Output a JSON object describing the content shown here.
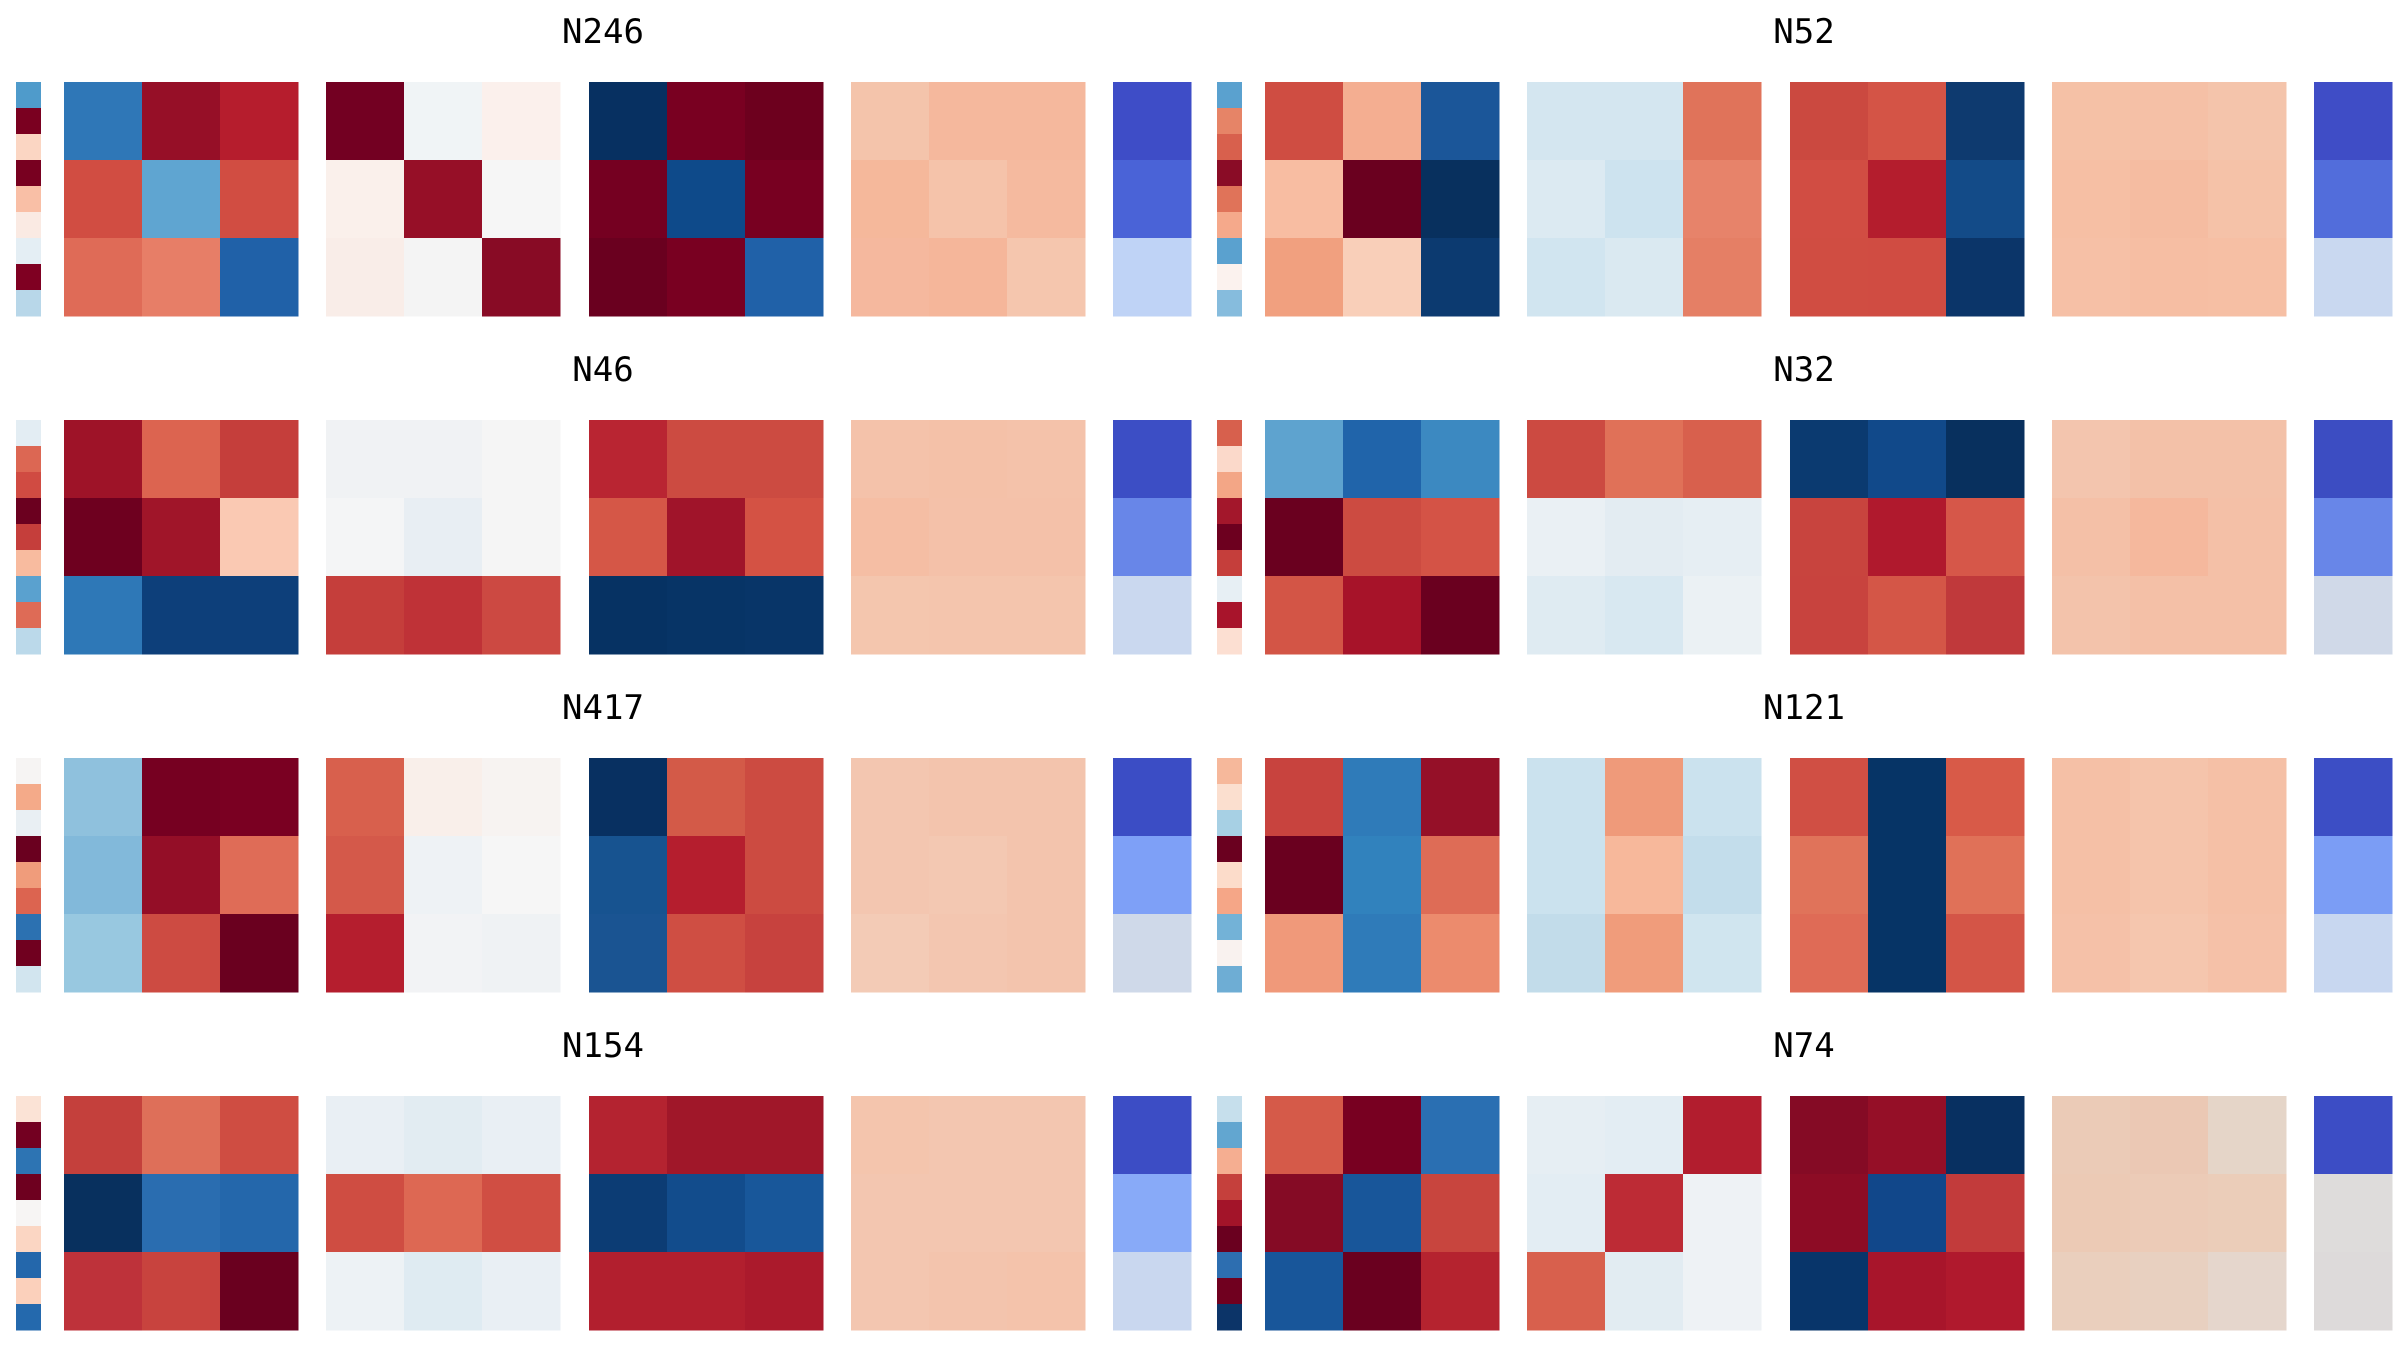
{
  "chart_data": {
    "type": "heatmap",
    "panels": [
      {
        "title": "N246",
        "strip": [
          "#4f9bcb",
          "#7a0020",
          "#fbd6c3",
          "#780020",
          "#f9bfa6",
          "#faeae3",
          "#e4eef4",
          "#7f0022",
          "#b8d7e9"
        ],
        "matrices": [
          [
            [
              "#2f77b7",
              "#960f27",
              "#b61d2d"
            ],
            [
              "#d14d42",
              "#5fa5d1",
              "#d14d42"
            ],
            [
              "#df6b57",
              "#e77e67",
              "#2061a8"
            ]
          ],
          [
            [
              "#730022",
              "#f0f4f6",
              "#fbf0ec"
            ],
            [
              "#faf0eb",
              "#960f27",
              "#f6f6f6"
            ],
            [
              "#f9ede8",
              "#f4f4f4",
              "#880b25"
            ]
          ],
          [
            [
              "#073061",
              "#790021",
              "#6d001e"
            ],
            [
              "#750021",
              "#0e4a8a",
              "#780021"
            ],
            [
              "#6a001f",
              "#790021",
              "#2061a8"
            ]
          ],
          [
            [
              "#f4c4ab",
              "#f5b89d",
              "#f5b89d"
            ],
            [
              "#f5b89b",
              "#f5c3aa",
              "#f5ba9f"
            ],
            [
              "#f5b89e",
              "#f5b69a",
              "#f5c6ae"
            ]
          ],
          [
            [
              "#3e4dc7"
            ],
            [
              "#4a63d7"
            ],
            [
              "#bfd3f6"
            ]
          ]
        ]
      },
      {
        "title": "N52",
        "strip": [
          "#5aa1cf",
          "#e68467",
          "#d8604d",
          "#8a0c26",
          "#e07359",
          "#f5a98b",
          "#5aa1cf",
          "#fbf2ee",
          "#86bcdd"
        ],
        "matrices": [
          [
            [
              "#cf4d42",
              "#f4ae91",
              "#1b5699"
            ],
            [
              "#f8bda2",
              "#6a001f",
              "#08305e"
            ],
            [
              "#f1a07f",
              "#f9cfb9",
              "#0c3a70"
            ]
          ],
          [
            [
              "#d4e6f0",
              "#d4e6f0",
              "#e0735a"
            ],
            [
              "#dceaf2",
              "#cde3ef",
              "#e7836a"
            ],
            [
              "#d1e5f0",
              "#dae9f1",
              "#e57f65"
            ]
          ],
          [
            [
              "#cb4940",
              "#d45446",
              "#0e3a6f"
            ],
            [
              "#d14d43",
              "#b41d2d",
              "#134b88"
            ],
            [
              "#d04d42",
              "#d04c42",
              "#0b3569"
            ]
          ],
          [
            [
              "#f5c1a6",
              "#f5c0a6",
              "#f4c4ab"
            ],
            [
              "#f6bfa4",
              "#f5bca1",
              "#f5c2a8"
            ],
            [
              "#f6c0a6",
              "#f6bea3",
              "#f6bfa4"
            ]
          ],
          [
            [
              "#3f4dc6"
            ],
            [
              "#526ddb"
            ],
            [
              "#c9d8f0"
            ]
          ]
        ]
      },
      {
        "title": "N46",
        "strip": [
          "#e3edf3",
          "#dc6753",
          "#d04b42",
          "#6b001f",
          "#c53e3b",
          "#f8bb9f",
          "#5aa1cf",
          "#de6b56",
          "#bbd9ea"
        ],
        "matrices": [
          [
            [
              "#9e1328",
              "#dc6450",
              "#c53e3b"
            ],
            [
              "#6e001f",
              "#a01529",
              "#fac9b3"
            ],
            [
              "#2e78b7",
              "#0d3f7a",
              "#0d3f7a"
            ]
          ],
          [
            [
              "#f0f2f4",
              "#f0f2f4",
              "#f5f5f5"
            ],
            [
              "#f4f5f6",
              "#e8eef3",
              "#f5f5f5"
            ],
            [
              "#c53e3b",
              "#bf3237",
              "#cc4942"
            ]
          ],
          [
            [
              "#b92532",
              "#cc4b41",
              "#cc4b41"
            ],
            [
              "#d55747",
              "#a0142a",
              "#d45244"
            ],
            [
              "#063263",
              "#073466",
              "#083568"
            ]
          ],
          [
            [
              "#f4c2aa",
              "#f4c1a8",
              "#f4c2aa"
            ],
            [
              "#f5bea4",
              "#f4c1a9",
              "#f4c1a9"
            ],
            [
              "#f4c6ae",
              "#f4c5ad",
              "#f4c5ad"
            ]
          ],
          [
            [
              "#3c4ec5"
            ],
            [
              "#6886e8"
            ],
            [
              "#cad8ef"
            ]
          ]
        ]
      },
      {
        "title": "N32",
        "strip": [
          "#d7604d",
          "#fbd9ca",
          "#f3a686",
          "#a3172b",
          "#6d001f",
          "#c53e3b",
          "#e7eff4",
          "#a8142b",
          "#fcdfd2"
        ],
        "matrices": [
          [
            [
              "#5ea3cf",
              "#2064aa",
              "#3c89c1"
            ],
            [
              "#6a001f",
              "#cc4b41",
              "#d45346"
            ],
            [
              "#d35546",
              "#a71329",
              "#6a001f"
            ]
          ],
          [
            [
              "#cc4a41",
              "#e07158",
              "#d8604d"
            ],
            [
              "#eaf0f4",
              "#e3ecf2",
              "#e6eef3"
            ],
            [
              "#dfebf2",
              "#d8e8f1",
              "#ebf1f4"
            ]
          ],
          [
            [
              "#0b3a70",
              "#11498a",
              "#08305e"
            ],
            [
              "#c8443e",
              "#b0192d",
              "#d65749"
            ],
            [
              "#c8433e",
              "#d45647",
              "#c0393b"
            ]
          ],
          [
            [
              "#f3c5ae",
              "#f3c1a8",
              "#f3c1a8"
            ],
            [
              "#f4c0a7",
              "#f5b89d",
              "#f4c0a7"
            ],
            [
              "#f3c3ab",
              "#f4c0a7",
              "#f4c0a7"
            ]
          ],
          [
            [
              "#3c4dc2"
            ],
            [
              "#6886e8"
            ],
            [
              "#d0d9e8"
            ]
          ]
        ]
      },
      {
        "title": "N417",
        "strip": [
          "#f6f4f3",
          "#f4aa89",
          "#e9eff3",
          "#6a001f",
          "#f09c7b",
          "#dc6450",
          "#2c71b1",
          "#70001f",
          "#d2e5ef"
        ],
        "matrices": [
          [
            [
              "#8fc1dd",
              "#760021",
              "#7a0022"
            ],
            [
              "#82b9da",
              "#940e27",
              "#df6c57"
            ],
            [
              "#98c8e0",
              "#cd4b42",
              "#6a001f"
            ]
          ],
          [
            [
              "#d8604d",
              "#f9efea",
              "#f7f3f1"
            ],
            [
              "#d4594a",
              "#eef2f5",
              "#f6f6f6"
            ],
            [
              "#b51e2e",
              "#f2f3f5",
              "#eff2f4"
            ]
          ],
          [
            [
              "#083061",
              "#d35a48",
              "#cc4b41"
            ],
            [
              "#175390",
              "#b51e2e",
              "#cc4b41"
            ],
            [
              "#1a5492",
              "#cf4e43",
              "#c7423e"
            ]
          ],
          [
            [
              "#f3c6b0",
              "#f3c4ad",
              "#f3c4ad"
            ],
            [
              "#f3c6b0",
              "#f3c8b2",
              "#f3c4ad"
            ],
            [
              "#f3cbb6",
              "#f3c6b0",
              "#f3c4ad"
            ]
          ],
          [
            [
              "#3b4dc5"
            ],
            [
              "#7ea0f7"
            ],
            [
              "#cfd9e9"
            ]
          ]
        ]
      },
      {
        "title": "N121",
        "strip": [
          "#f6b89b",
          "#fbdfcf",
          "#a7d0e4",
          "#6a001f",
          "#fcdcca",
          "#f5a687",
          "#73b2d7",
          "#f9f2ef",
          "#6eadd4"
        ],
        "matrices": [
          [
            [
              "#c8433e",
              "#2f7bb9",
              "#951028"
            ],
            [
              "#6a001f",
              "#3182bd",
              "#de6c56"
            ],
            [
              "#f0997a",
              "#2f7bb9",
              "#ec8b6d"
            ]
          ],
          [
            [
              "#cbe2ee",
              "#ef9a7a",
              "#cbe2ee"
            ],
            [
              "#cbe2ee",
              "#f7b89b",
              "#c3ddeb"
            ],
            [
              "#c2dcea",
              "#f09c7b",
              "#d0e5ef"
            ]
          ],
          [
            [
              "#d04f44",
              "#063466",
              "#d85a48"
            ],
            [
              "#e0735a",
              "#063466",
              "#e07158"
            ],
            [
              "#df6b56",
              "#063466",
              "#d45547"
            ]
          ],
          [
            [
              "#f5c0a6",
              "#f5c4ab",
              "#f5c0a6"
            ],
            [
              "#f5c0a6",
              "#f5c4ab",
              "#f5c0a6"
            ],
            [
              "#f5c1a8",
              "#f5c6ae",
              "#f5c1a8"
            ]
          ],
          [
            [
              "#3c4ec5"
            ],
            [
              "#7b9df5"
            ],
            [
              "#c8d7f0"
            ]
          ]
        ]
      },
      {
        "title": "N154",
        "strip": [
          "#fbe3d6",
          "#730021",
          "#2d74b3",
          "#6e001f",
          "#f7f5f4",
          "#fbd6c3",
          "#2467ab",
          "#fbd0bb",
          "#2469ad"
        ],
        "matrices": [
          [
            [
              "#c4403c",
              "#de6f59",
              "#cf4d42"
            ],
            [
              "#08305e",
              "#2a6db0",
              "#2467ab"
            ],
            [
              "#be323a",
              "#c8433e",
              "#6a001f"
            ]
          ],
          [
            [
              "#e9eff4",
              "#e2ecf2",
              "#e9eff4"
            ],
            [
              "#cf4d42",
              "#dd6853",
              "#d04e43"
            ],
            [
              "#edf2f5",
              "#dfebf2",
              "#e9eff4"
            ]
          ],
          [
            [
              "#b42330",
              "#a01729",
              "#a01729"
            ],
            [
              "#0c3c74",
              "#124c8c",
              "#18579a"
            ],
            [
              "#b21f2e",
              "#b21f2e",
              "#ab1a2c"
            ]
          ],
          [
            [
              "#f4c5ad",
              "#f3c6b0",
              "#f3c6b0"
            ],
            [
              "#f3c6b0",
              "#f3c6b0",
              "#f3c6b0"
            ],
            [
              "#f3c6b0",
              "#f3c4ad",
              "#f4c3ab"
            ]
          ],
          [
            [
              "#3c4dc5"
            ],
            [
              "#88aaf8"
            ],
            [
              "#c9d7ef"
            ]
          ]
        ]
      },
      {
        "title": "N74",
        "strip": [
          "#c6dfec",
          "#62a6d0",
          "#f5ae91",
          "#c5403c",
          "#a31429",
          "#6a001f",
          "#2d6eb0",
          "#70001f",
          "#0c3468"
        ],
        "matrices": [
          [
            [
              "#d55a49",
              "#780021",
              "#2a6fb2"
            ],
            [
              "#850b25",
              "#18569a",
              "#c8453e"
            ],
            [
              "#18569a",
              "#6a001f",
              "#b5232f"
            ]
          ],
          [
            [
              "#e6eef3",
              "#e3edf3",
              "#b21d2e"
            ],
            [
              "#e3edf3",
              "#bd2b35",
              "#eef2f5"
            ],
            [
              "#d8604d",
              "#e2ecf2",
              "#eef2f5"
            ]
          ],
          [
            [
              "#850b25",
              "#950f27",
              "#083061"
            ],
            [
              "#8d0c25",
              "#11478a",
              "#c23b3b"
            ],
            [
              "#08356a",
              "#a8152b",
              "#b0192d"
            ]
          ],
          [
            [
              "#ebcbb7",
              "#ebc8b4",
              "#e5d5c8"
            ],
            [
              "#eccab5",
              "#eccbb7",
              "#ebcdb9"
            ],
            [
              "#eacfbd",
              "#e8d0c0",
              "#e5d6cc"
            ]
          ],
          [
            [
              "#3c4dc5"
            ],
            [
              "#dedcdb"
            ],
            [
              "#dddada"
            ]
          ]
        ]
      }
    ]
  }
}
